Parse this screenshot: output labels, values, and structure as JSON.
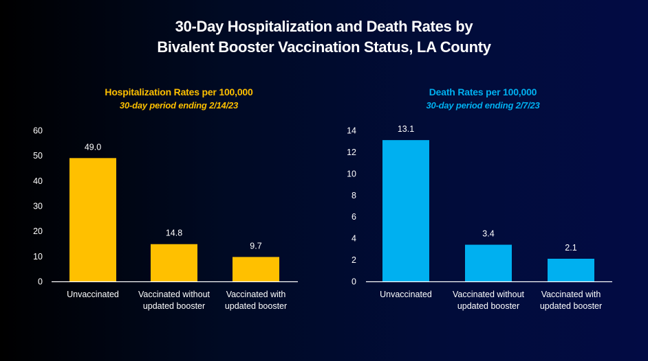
{
  "main_title": {
    "line1": "30-Day Hospitalization and Death Rates by",
    "line2": "Bivalent Booster Vaccination Status, LA County"
  },
  "colors": {
    "hospitalization": "#FFC000",
    "death": "#00B0F0",
    "text": "#FFFFFF",
    "background_left": "#000000",
    "background_right": "#020B44"
  },
  "chart_data": [
    {
      "type": "bar",
      "title": "Hospitalization Rates per 100,000",
      "subtitle": "30-day period ending 2/14/23",
      "categories": [
        [
          "Unvaccinated"
        ],
        [
          "Vaccinated without",
          "updated booster"
        ],
        [
          "Vaccinated with",
          "updated booster"
        ]
      ],
      "values": [
        49.0,
        14.8,
        9.7
      ],
      "value_labels": [
        "49.0",
        "14.8",
        "9.7"
      ],
      "xlabel": "",
      "ylabel": "",
      "ylim": [
        0,
        60
      ],
      "yticks": [
        0,
        10,
        20,
        30,
        40,
        50,
        60
      ],
      "grid": false,
      "color": "#FFC000"
    },
    {
      "type": "bar",
      "title": "Death Rates per 100,000",
      "subtitle": "30-day period ending 2/7/23",
      "categories": [
        [
          "Unvaccinated"
        ],
        [
          "Vaccinated without",
          "updated booster"
        ],
        [
          "Vaccinated with",
          "updated booster"
        ]
      ],
      "values": [
        13.1,
        3.4,
        2.1
      ],
      "value_labels": [
        "13.1",
        "3.4",
        "2.1"
      ],
      "xlabel": "",
      "ylabel": "",
      "ylim": [
        0,
        14
      ],
      "yticks": [
        0,
        2,
        4,
        6,
        8,
        10,
        12,
        14
      ],
      "grid": false,
      "color": "#00B0F0"
    }
  ]
}
